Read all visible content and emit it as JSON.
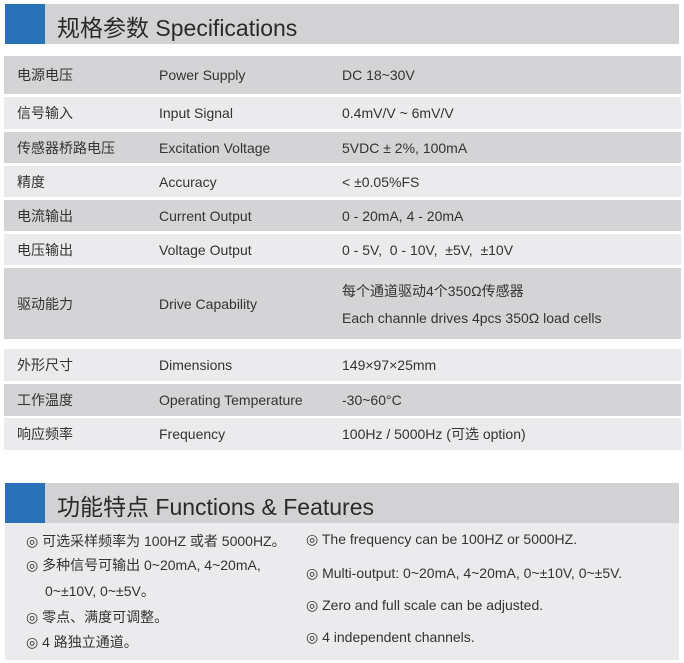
{
  "spec_header": {
    "title": "规格参数 Specifications"
  },
  "spec_rows": [
    {
      "zh": "电源电压",
      "en": "Power Supply",
      "value": "DC 18~30V"
    },
    {
      "zh": "信号输入",
      "en": "Input Signal",
      "value": "0.4mV/V ~ 6mV/V"
    },
    {
      "zh": "传感器桥路电压",
      "en": "Excitation Voltage",
      "value": "5VDC ± 2%, 100mA"
    },
    {
      "zh": "精度",
      "en": "Accuracy",
      "value": "< ±0.05%FS"
    },
    {
      "zh": "电流输出",
      "en": "Current Output",
      "value": "0 - 20mA, 4 - 20mA"
    },
    {
      "zh": "电压输出",
      "en": "Voltage Output",
      "value": "0 - 5V,  0 - 10V,  ±5V,  ±10V"
    },
    {
      "zh": "驱动能力",
      "en": "Drive Capability",
      "value": "每个通道驱动4个350Ω传感器",
      "value2": "Each channle drives 4pcs 350Ω load cells"
    },
    {
      "zh": "外形尺寸",
      "en": "Dimensions",
      "value": "149×97×25mm"
    },
    {
      "zh": "工作温度",
      "en": "Operating Temperature",
      "value": "-30~60°C"
    },
    {
      "zh": "响应频率",
      "en": "Frequency",
      "value": "100Hz / 5000Hz (可选 option)"
    }
  ],
  "features_header": {
    "title": "功能特点 Functions & Features"
  },
  "features_zh": [
    "◎ 可选采样频率为 100HZ 或者 5000HZ。",
    "◎ 多种信号可输出 0~20mA, 4~20mA,",
    "0~±10V, 0~±5V。",
    "◎ 零点、满度可调整。",
    "◎ 4 路独立通道。"
  ],
  "features_en": [
    "◎ The frequency can be 100HZ or 5000HZ.",
    "◎ Multi-output: 0~20mA, 4~20mA, 0~±10V, 0~±5V.",
    "◎ Zero and full scale can be adjusted.",
    "◎ 4 independent channels."
  ],
  "colors": {
    "accent": "#2a72b8",
    "header_bg": "#d2d2d4",
    "row_dark": "#d4d4d6",
    "row_light": "#ebebed"
  }
}
